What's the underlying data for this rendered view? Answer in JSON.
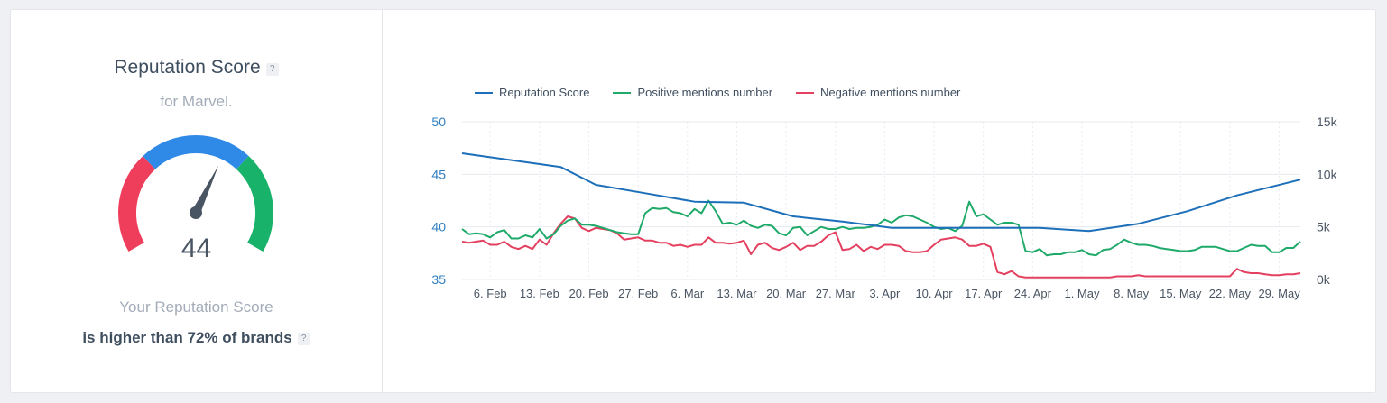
{
  "widget": {
    "title": "Reputation Score",
    "help_glyph": "?",
    "subtitle": "for Marvel.",
    "score": "44",
    "description_line1": "Your Reputation Score",
    "description_line2": "is higher than 72% of brands",
    "gauge_colors": {
      "low": "#ef3e5c",
      "mid": "#2f89e6",
      "high": "#18b26b",
      "needle": "#4a5563"
    }
  },
  "chart_data": {
    "type": "line",
    "legend_placement": "top-left",
    "grid": true,
    "x_tick_labels": [
      "6. Feb",
      "13. Feb",
      "20. Feb",
      "27. Feb",
      "6. Mar",
      "13. Mar",
      "20. Mar",
      "27. Mar",
      "3. Apr",
      "10. Apr",
      "17. Apr",
      "24. Apr",
      "1. May",
      "8. May",
      "15. May",
      "22. May",
      "29. May"
    ],
    "x_range_days": [
      0,
      119
    ],
    "y_left": {
      "ticks": [
        "35",
        "40",
        "45",
        "50"
      ],
      "range": [
        35,
        50
      ]
    },
    "y_right": {
      "ticks": [
        "0k",
        "5k",
        "10k",
        "15k"
      ],
      "range": [
        0,
        15000
      ]
    },
    "series": [
      {
        "name": "Reputation Score",
        "axis": "left",
        "color": "#1c6fb8",
        "x": [
          0,
          14,
          19,
          26,
          33,
          40,
          47,
          54,
          61,
          68,
          75,
          82,
          89,
          96,
          103,
          110,
          119
        ],
        "y": [
          47.0,
          45.7,
          44.0,
          43.2,
          42.4,
          42.3,
          41.0,
          40.5,
          39.9,
          39.9,
          39.9,
          39.9,
          39.6,
          40.3,
          41.5,
          43.0,
          44.5
        ]
      },
      {
        "name": "Positive mentions number",
        "axis": "right",
        "color": "#1faa6a",
        "x": [
          0,
          1,
          2,
          3,
          4,
          5,
          6,
          7,
          8,
          9,
          10,
          11,
          12,
          13,
          14,
          15,
          16,
          17,
          18,
          19,
          20,
          21,
          22,
          23,
          24,
          25,
          26,
          27,
          28,
          29,
          30,
          31,
          32,
          33,
          34,
          35,
          36,
          37,
          38,
          39,
          40,
          41,
          42,
          43,
          44,
          45,
          46,
          47,
          48,
          49,
          50,
          51,
          52,
          53,
          54,
          55,
          56,
          57,
          58,
          59,
          60,
          61,
          62,
          63,
          64,
          65,
          66,
          67,
          68,
          69,
          70,
          71,
          72,
          73,
          74,
          75,
          76,
          77,
          78,
          79,
          80,
          81,
          82,
          83,
          84,
          85,
          86,
          87,
          88,
          89,
          90,
          91,
          92,
          93,
          94,
          95,
          96,
          97,
          98,
          99,
          100,
          101,
          102,
          103,
          104,
          105,
          106,
          107,
          108,
          109,
          110,
          111,
          112,
          113,
          114,
          115,
          116,
          117,
          118,
          119
        ],
        "y": [
          4800,
          4300,
          4400,
          4300,
          4000,
          4500,
          4700,
          3900,
          3900,
          4200,
          4000,
          4800,
          3900,
          4300,
          5100,
          5600,
          5800,
          5200,
          5200,
          5100,
          4900,
          4700,
          4500,
          4400,
          4300,
          4300,
          6300,
          6800,
          6700,
          6800,
          6400,
          6300,
          6000,
          6700,
          6300,
          7500,
          6500,
          5300,
          5400,
          5200,
          5600,
          5100,
          4900,
          5200,
          5100,
          4400,
          4200,
          4900,
          5000,
          4200,
          4600,
          5000,
          4800,
          4800,
          5000,
          4800,
          4900,
          4900,
          5000,
          5200,
          5700,
          5400,
          5900,
          6100,
          6000,
          5700,
          5400,
          5000,
          4800,
          4900,
          4600,
          5100,
          7400,
          6000,
          6200,
          5700,
          5200,
          5400,
          5400,
          5200,
          2700,
          2600,
          2900,
          2300,
          2400,
          2400,
          2600,
          2600,
          2800,
          2400,
          2300,
          2800,
          2900,
          3300,
          3800,
          3500,
          3300,
          3300,
          3200,
          3000,
          2900,
          2800,
          2700,
          2700,
          2800,
          3100,
          3100,
          3100,
          2900,
          2700,
          2700,
          3000,
          3300,
          3200,
          3200,
          2600,
          2600,
          3000,
          3000,
          3600
        ]
      },
      {
        "name": "Negative mentions number",
        "axis": "right",
        "color": "#e4405f",
        "x": [
          0,
          1,
          2,
          3,
          4,
          5,
          6,
          7,
          8,
          9,
          10,
          11,
          12,
          13,
          14,
          15,
          16,
          17,
          18,
          19,
          20,
          21,
          22,
          23,
          24,
          25,
          26,
          27,
          28,
          29,
          30,
          31,
          32,
          33,
          34,
          35,
          36,
          37,
          38,
          39,
          40,
          41,
          42,
          43,
          44,
          45,
          46,
          47,
          48,
          49,
          50,
          51,
          52,
          53,
          54,
          55,
          56,
          57,
          58,
          59,
          60,
          61,
          62,
          63,
          64,
          65,
          66,
          67,
          68,
          69,
          70,
          71,
          72,
          73,
          74,
          75,
          76,
          77,
          78,
          79,
          80,
          81,
          82,
          83,
          84,
          85,
          86,
          87,
          88,
          89,
          90,
          91,
          92,
          93,
          94,
          95,
          96,
          97,
          98,
          99,
          100,
          101,
          102,
          103,
          104,
          105,
          106,
          107,
          108,
          109,
          110,
          111,
          112,
          113,
          114,
          115,
          116,
          117,
          118,
          119
        ],
        "y": [
          3600,
          3500,
          3600,
          3700,
          3300,
          3300,
          3600,
          3100,
          2900,
          3200,
          2900,
          3800,
          3300,
          4400,
          5300,
          6000,
          5800,
          4900,
          4600,
          4900,
          4800,
          4700,
          4400,
          3800,
          3900,
          4000,
          3700,
          3700,
          3500,
          3500,
          3200,
          3300,
          3100,
          3300,
          3300,
          4000,
          3500,
          3500,
          3400,
          3500,
          3700,
          2400,
          3300,
          3500,
          3000,
          2800,
          3100,
          3500,
          2800,
          3200,
          3200,
          3600,
          4200,
          4500,
          2800,
          2900,
          3300,
          2700,
          3100,
          2900,
          3300,
          3300,
          3200,
          2700,
          2600,
          2600,
          2700,
          3300,
          3800,
          3900,
          4000,
          3800,
          3200,
          3200,
          3400,
          3100,
          700,
          500,
          800,
          300,
          200,
          200,
          200,
          200,
          200,
          200,
          200,
          200,
          200,
          200,
          200,
          200,
          200,
          300,
          300,
          300,
          400,
          300,
          300,
          300,
          300,
          300,
          300,
          300,
          300,
          300,
          300,
          300,
          300,
          300,
          1000,
          700,
          600,
          600,
          500,
          400,
          400,
          500,
          500,
          600
        ]
      }
    ]
  }
}
